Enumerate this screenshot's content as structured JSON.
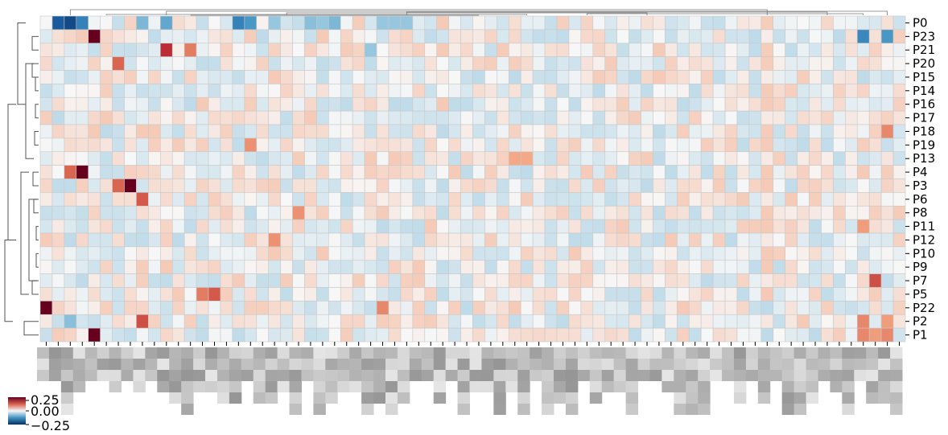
{
  "chart_data": {
    "type": "heatmap",
    "title": "",
    "xlabel": "",
    "ylabel": "",
    "row_labels": [
      "P0",
      "P23",
      "P21",
      "P20",
      "P15",
      "P14",
      "P16",
      "P17",
      "P18",
      "P19",
      "P13",
      "P4",
      "P3",
      "P6",
      "P8",
      "P11",
      "P12",
      "P10",
      "P9",
      "P7",
      "P5",
      "P22",
      "P2",
      "P1"
    ],
    "column_labels_note": "column tick labels are pixelated/obscured in the image",
    "n_columns": 72,
    "row_dendrogram": true,
    "column_dendrogram": true,
    "grid": true,
    "colormap": "RdBu_r",
    "vmin": -0.25,
    "vmax": 0.25,
    "colorbar": {
      "tick_labels": [
        "0.25",
        "0.00",
        "−0.25"
      ],
      "ticks": [
        0.25,
        0.0,
        -0.25
      ],
      "placement": "bottom-left"
    },
    "notable_cells": [
      {
        "row": "P0",
        "col": 1,
        "value": -0.2
      },
      {
        "row": "P0",
        "col": 2,
        "value": -0.22
      },
      {
        "row": "P0",
        "col": 3,
        "value": -0.15
      },
      {
        "row": "P0",
        "col": 8,
        "value": -0.08
      },
      {
        "row": "P0",
        "col": 10,
        "value": -0.1
      },
      {
        "row": "P0",
        "col": 16,
        "value": -0.15
      },
      {
        "row": "P0",
        "col": 17,
        "value": -0.12
      },
      {
        "row": "P0",
        "col": 19,
        "value": -0.06
      },
      {
        "row": "P0",
        "col": 22,
        "value": -0.07
      },
      {
        "row": "P0",
        "col": 23,
        "value": -0.06
      },
      {
        "row": "P0",
        "col": 24,
        "value": -0.08
      },
      {
        "row": "P0",
        "col": 28,
        "value": -0.06
      },
      {
        "row": "P0",
        "col": 29,
        "value": -0.06
      },
      {
        "row": "P0",
        "col": 30,
        "value": -0.06
      },
      {
        "row": "P23",
        "col": 4,
        "value": 0.25
      },
      {
        "row": "P23",
        "col": 70,
        "value": -0.12
      },
      {
        "row": "P23",
        "col": 68,
        "value": -0.14
      },
      {
        "row": "P21",
        "col": 10,
        "value": 0.17
      },
      {
        "row": "P21",
        "col": 12,
        "value": 0.1
      },
      {
        "row": "P21",
        "col": 27,
        "value": -0.06
      },
      {
        "row": "P20",
        "col": 6,
        "value": 0.12
      },
      {
        "row": "P18",
        "col": 70,
        "value": 0.09
      },
      {
        "row": "P19",
        "col": 17,
        "value": 0.08
      },
      {
        "row": "P13",
        "col": 39,
        "value": 0.06
      },
      {
        "row": "P13",
        "col": 40,
        "value": 0.06
      },
      {
        "row": "P4",
        "col": 2,
        "value": 0.12
      },
      {
        "row": "P4",
        "col": 3,
        "value": 0.25
      },
      {
        "row": "P3",
        "col": 6,
        "value": 0.12
      },
      {
        "row": "P3",
        "col": 7,
        "value": 0.25
      },
      {
        "row": "P6",
        "col": 8,
        "value": 0.13
      },
      {
        "row": "P8",
        "col": 21,
        "value": 0.08
      },
      {
        "row": "P11",
        "col": 68,
        "value": 0.07
      },
      {
        "row": "P12",
        "col": 19,
        "value": 0.08
      },
      {
        "row": "P7",
        "col": 69,
        "value": 0.14
      },
      {
        "row": "P5",
        "col": 13,
        "value": 0.1
      },
      {
        "row": "P5",
        "col": 14,
        "value": 0.13
      },
      {
        "row": "P22",
        "col": 0,
        "value": 0.25
      },
      {
        "row": "P22",
        "col": 28,
        "value": 0.09
      },
      {
        "row": "P2",
        "col": 8,
        "value": 0.14
      },
      {
        "row": "P2",
        "col": 2,
        "value": -0.07
      },
      {
        "row": "P2",
        "col": 68,
        "value": 0.09
      },
      {
        "row": "P2",
        "col": 70,
        "value": 0.07
      },
      {
        "row": "P1",
        "col": 4,
        "value": 0.25
      },
      {
        "row": "P1",
        "col": 68,
        "value": 0.09
      },
      {
        "row": "P1",
        "col": 69,
        "value": 0.07
      },
      {
        "row": "P1",
        "col": 70,
        "value": 0.09
      }
    ]
  }
}
